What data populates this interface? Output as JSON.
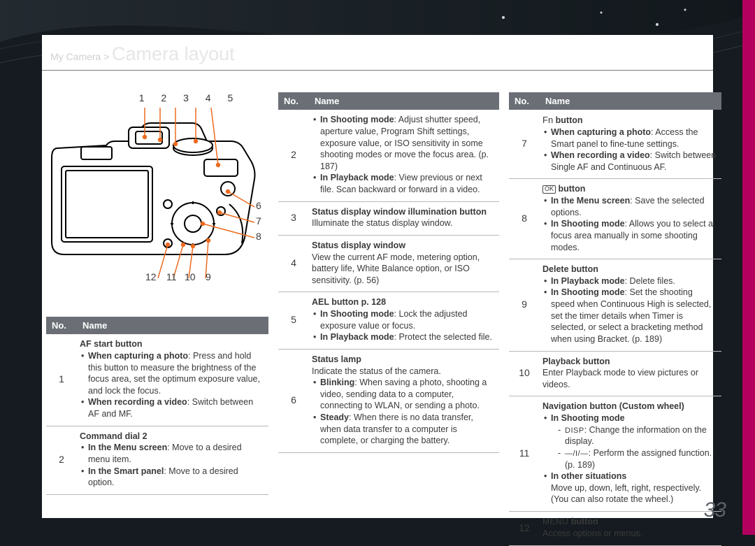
{
  "page_number": "33",
  "breadcrumb": {
    "path": "My Camera >",
    "title": "Camera layout"
  },
  "header": {
    "no": "No.",
    "name": "Name"
  },
  "callouts_top": "1 2 3   4 5",
  "callouts_right": [
    "6",
    "7",
    "8"
  ],
  "callouts_bottom": [
    "12",
    "11",
    "10",
    "9"
  ],
  "col1": [
    {
      "no": "1",
      "title": "AF start button",
      "bullets": [
        {
          "lead": "When capturing a photo",
          "text": ": Press and hold this button to measure the brightness of the focus area, set the optimum exposure value, and lock the focus."
        },
        {
          "lead": "When recording a video",
          "text": ": Switch between AF and MF."
        }
      ]
    },
    {
      "no": "2",
      "title": "Command dial 2",
      "bullets": [
        {
          "lead": "In the Menu screen",
          "text": ": Move to a desired menu item."
        },
        {
          "lead": "In the Smart panel",
          "text": ": Move to a desired option."
        }
      ]
    }
  ],
  "col2": [
    {
      "no": "2",
      "title": "",
      "bullets": [
        {
          "lead": "In Shooting mode",
          "text": ": Adjust shutter speed, aperture value, Program Shift settings, exposure value, or ISO sensitivity in some shooting modes or move the focus area. (p. 187)"
        },
        {
          "lead": "In Playback mode",
          "text": ": View previous or next file. Scan backward or forward in a video."
        }
      ]
    },
    {
      "no": "3",
      "title": "Status display window illumination button",
      "plain": "Illuminate the status display window."
    },
    {
      "no": "4",
      "title": "Status display window",
      "plain": "View the current AF mode, metering option, battery life, White Balance option, or ISO sensitivity. (p. 56)"
    },
    {
      "no": "5",
      "title": "AEL button p. 128",
      "bullets": [
        {
          "lead": "In Shooting mode",
          "text": ": Lock the adjusted exposure value or focus."
        },
        {
          "lead": "In Playback mode",
          "text": ": Protect the selected file."
        }
      ]
    },
    {
      "no": "6",
      "title": "Status lamp",
      "plain": "Indicate the status of the camera.",
      "bullets": [
        {
          "lead": "Blinking",
          "text": ": When saving a photo, shooting a video, sending data to a computer, connecting to WLAN, or sending a photo."
        },
        {
          "lead": "Steady",
          "text": ": When there is no data transfer, when data transfer to a computer is complete, or charging the battery."
        }
      ]
    }
  ],
  "col3": [
    {
      "no": "7",
      "title_prefix_class": "fnword",
      "title_prefix": "Fn",
      "title_rest": " button",
      "bullets": [
        {
          "lead": "When capturing a photo",
          "text": ": Access the Smart panel to fine-tune settings."
        },
        {
          "lead": "When recording a video",
          "text": ": Switch between Single AF and Continuous AF."
        }
      ]
    },
    {
      "no": "8",
      "title_html": "ok",
      "bullets": [
        {
          "lead": "In the Menu screen",
          "text": ": Save the selected options."
        },
        {
          "lead": "In Shooting mode",
          "text": ": Allows you to select a focus area manually in some shooting modes."
        }
      ]
    },
    {
      "no": "9",
      "title": "Delete button",
      "bullets": [
        {
          "lead": "In Playback mode",
          "text": ": Delete files."
        },
        {
          "lead": "In Shooting mode",
          "text": ": Set the shooting speed when Continuous High is selected, set the timer details when Timer is selected, or select a bracketing method when using Bracket. (p. 189)"
        }
      ]
    },
    {
      "no": "10",
      "title": "Playback button",
      "plain": "Enter Playback mode to view pictures or videos."
    },
    {
      "no": "11",
      "title": "Navigation button (Custom wheel)",
      "bullets_nobold": [
        {
          "lead": "In Shooting mode",
          "dashes": [
            {
              "pre": "DISP",
              "text": ": Change the information on the display."
            },
            {
              "pre": "—/I/—",
              "text": ": Perform the assigned function. (p. 189)"
            }
          ]
        },
        {
          "lead": "In other situations",
          "plain": "Move up, down, left, right, respectively. (You can also rotate the wheel.)"
        }
      ]
    },
    {
      "no": "12",
      "title_prefix_class": "menuword",
      "title_prefix": "MENU",
      "title_rest": " button",
      "plain": "Access options or menus."
    }
  ],
  "colors": {
    "header_bg": "#6b6f75",
    "accent": "#ec6b1f",
    "rightbar": "#b3005e"
  }
}
